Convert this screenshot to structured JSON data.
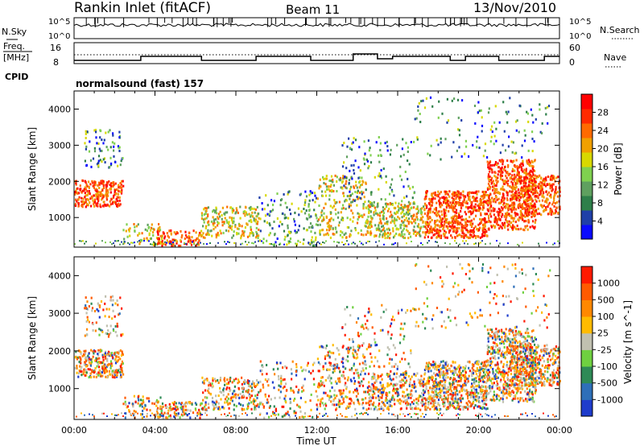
{
  "header": {
    "title": "Rankin Inlet (fitACF)",
    "beam": "Beam 11",
    "date": "13/Nov/2010"
  },
  "panels": {
    "nsky_label": "N.Sky",
    "nsearch_label": "N.Search",
    "nsky_ticks": [
      "10^5",
      "10^0"
    ],
    "nsearch_ticks": [
      "10^5",
      "10^0"
    ],
    "freq_label_line1": "Freq.",
    "freq_label_line2": "[MHz]",
    "freq_ticks": [
      "16",
      "8"
    ],
    "nave_label": "Nave",
    "nave_ticks": [
      "60",
      "0"
    ],
    "cpid_label": "CPID",
    "cpid_text": "normalsound (fast) 157"
  },
  "colors": {
    "axes": "#000000",
    "power_scale": [
      "#0a0aff",
      "#1f3fa8",
      "#2e7f4a",
      "#5fa05f",
      "#7fd04f",
      "#d8d800",
      "#f0a000",
      "#ff6a00",
      "#ff2a00",
      "#ff0000"
    ],
    "velocity_scale": [
      "#1e3ccc",
      "#2e6fb8",
      "#2e8a56",
      "#6fd040",
      "#c0c0b0",
      "#ffbb00",
      "#ff8800",
      "#ff5a00",
      "#ff1a00"
    ]
  },
  "chart_data": [
    {
      "type": "heatmap",
      "name": "Power",
      "xlabel": "",
      "ylabel": "Slant Range [km]",
      "xlim": [
        "00:00",
        "00:00"
      ],
      "xticks": [
        "00:00",
        "04:00",
        "08:00",
        "12:00",
        "16:00",
        "20:00",
        "00:00"
      ],
      "ylim": [
        180,
        4500
      ],
      "yticks": [
        1000,
        2000,
        3000,
        4000
      ],
      "colorbar": {
        "label": "Power [dB]",
        "ticks": [
          28,
          24,
          20,
          16,
          12,
          8,
          4
        ],
        "range": [
          0,
          32
        ]
      }
    },
    {
      "type": "heatmap",
      "name": "Velocity",
      "xlabel": "Time UT",
      "ylabel": "Slant Range [km]",
      "xlim": [
        "00:00",
        "00:00"
      ],
      "xticks": [
        "00:00",
        "04:00",
        "08:00",
        "12:00",
        "16:00",
        "20:00",
        "00:00"
      ],
      "ylim": [
        180,
        4500
      ],
      "yticks": [
        1000,
        2000,
        3000,
        4000
      ],
      "colorbar": {
        "label": "Velocity [m s^-1]",
        "ticks": [
          1000,
          500,
          100,
          25,
          -25,
          -100,
          -500,
          -1000
        ]
      }
    }
  ]
}
